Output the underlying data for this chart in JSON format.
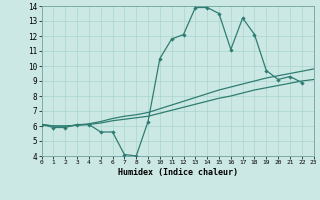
{
  "title": "",
  "xlabel": "Humidex (Indice chaleur)",
  "xlim": [
    0,
    23
  ],
  "ylim": [
    4,
    14
  ],
  "xticks": [
    0,
    1,
    2,
    3,
    4,
    5,
    6,
    7,
    8,
    9,
    10,
    11,
    12,
    13,
    14,
    15,
    16,
    17,
    18,
    19,
    20,
    21,
    22,
    23
  ],
  "yticks": [
    4,
    5,
    6,
    7,
    8,
    9,
    10,
    11,
    12,
    13,
    14
  ],
  "bg_color": "#cce8e4",
  "line_color": "#2e7d73",
  "grid_color": "#aad4ce",
  "line1_x": [
    0,
    1,
    2,
    3,
    4,
    5,
    6,
    7,
    8,
    9,
    10,
    11,
    12,
    13,
    14,
    15,
    16,
    17,
    18,
    19,
    20,
    21,
    22
  ],
  "line1_y": [
    6.1,
    5.9,
    5.9,
    6.1,
    6.1,
    5.6,
    5.6,
    4.1,
    4.0,
    6.3,
    10.5,
    11.8,
    12.1,
    13.9,
    13.9,
    13.5,
    11.1,
    13.2,
    12.1,
    9.7,
    9.1,
    9.3,
    8.9
  ],
  "line2_x": [
    0,
    1,
    2,
    3,
    4,
    5,
    6,
    7,
    8,
    9,
    10,
    11,
    12,
    13,
    14,
    15,
    16,
    17,
    18,
    19,
    20,
    21,
    22,
    23
  ],
  "line2_y": [
    6.1,
    6.0,
    6.0,
    6.05,
    6.1,
    6.2,
    6.35,
    6.45,
    6.55,
    6.65,
    6.85,
    7.05,
    7.25,
    7.45,
    7.65,
    7.85,
    8.0,
    8.2,
    8.4,
    8.55,
    8.7,
    8.85,
    9.0,
    9.1
  ],
  "line3_x": [
    0,
    1,
    2,
    3,
    4,
    5,
    6,
    7,
    8,
    9,
    10,
    11,
    12,
    13,
    14,
    15,
    16,
    17,
    18,
    19,
    20,
    21,
    22,
    23
  ],
  "line3_y": [
    6.1,
    6.0,
    6.0,
    6.05,
    6.15,
    6.3,
    6.5,
    6.65,
    6.75,
    6.9,
    7.15,
    7.4,
    7.65,
    7.9,
    8.15,
    8.4,
    8.6,
    8.8,
    9.0,
    9.2,
    9.35,
    9.5,
    9.65,
    9.8
  ]
}
